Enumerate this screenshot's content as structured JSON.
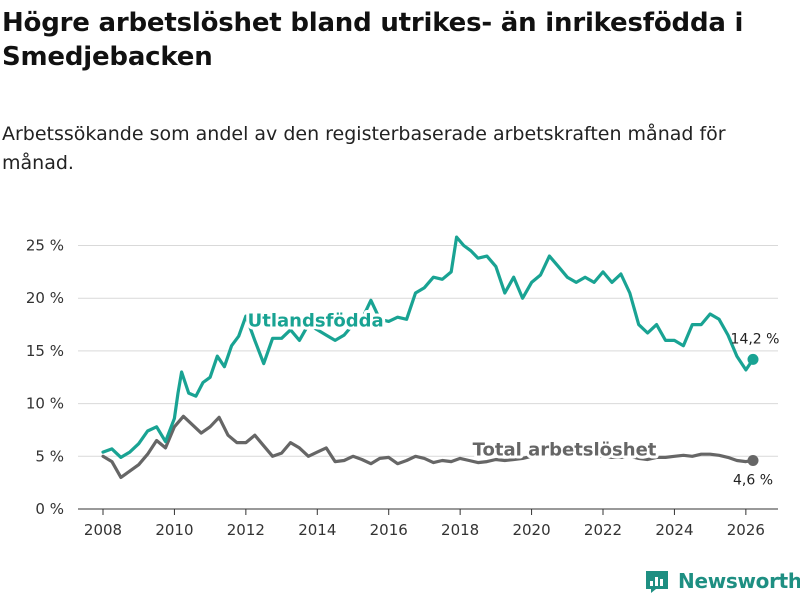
{
  "title": "Högre arbetslöshet bland utrikes- än inrikesfödda i Smedjebacken",
  "subtitle": "Arbetssökande som andel av den registerbaserade arbetskraften månad för månad.",
  "brand": {
    "name": "Newsworthy",
    "color": "#1e8f82"
  },
  "chart_data": {
    "type": "line",
    "title": "Högre arbetslöshet bland utrikes- än inrikesfödda i Smedjebacken",
    "xlabel": "",
    "ylabel": "",
    "xlim": [
      2007.3,
      2026.9
    ],
    "ylim": [
      0,
      26
    ],
    "x_ticks": [
      2008,
      2010,
      2012,
      2014,
      2016,
      2018,
      2020,
      2022,
      2024,
      2026
    ],
    "x_tick_labels": [
      "2008",
      "2010",
      "2012",
      "2014",
      "2016",
      "2018",
      "2020",
      "2022",
      "2024",
      "2026"
    ],
    "y_ticks": [
      0,
      5,
      10,
      15,
      20,
      25
    ],
    "y_tick_labels": [
      "0 %",
      "5 %",
      "10 %",
      "15 %",
      "20 %",
      "25 %"
    ],
    "grid": true,
    "series": [
      {
        "name": "Utlandsfödda",
        "color": "#19a393",
        "end_label": "14,2 %",
        "points": [
          [
            2008.0,
            5.4
          ],
          [
            2008.25,
            5.7
          ],
          [
            2008.5,
            4.9
          ],
          [
            2008.75,
            5.4
          ],
          [
            2009.0,
            6.2
          ],
          [
            2009.25,
            7.4
          ],
          [
            2009.5,
            7.8
          ],
          [
            2009.75,
            6.4
          ],
          [
            2010.0,
            8.6
          ],
          [
            2010.1,
            11.0
          ],
          [
            2010.2,
            13.0
          ],
          [
            2010.4,
            11.0
          ],
          [
            2010.6,
            10.7
          ],
          [
            2010.8,
            12.0
          ],
          [
            2011.0,
            12.5
          ],
          [
            2011.2,
            14.5
          ],
          [
            2011.4,
            13.5
          ],
          [
            2011.6,
            15.5
          ],
          [
            2011.8,
            16.4
          ],
          [
            2012.0,
            18.3
          ],
          [
            2012.25,
            16.0
          ],
          [
            2012.5,
            13.8
          ],
          [
            2012.75,
            16.2
          ],
          [
            2013.0,
            16.2
          ],
          [
            2013.25,
            17.0
          ],
          [
            2013.5,
            16.0
          ],
          [
            2013.75,
            17.5
          ],
          [
            2014.0,
            17.0
          ],
          [
            2014.25,
            16.5
          ],
          [
            2014.5,
            16.0
          ],
          [
            2014.75,
            16.5
          ],
          [
            2015.0,
            17.5
          ],
          [
            2015.25,
            18.0
          ],
          [
            2015.5,
            19.8
          ],
          [
            2015.75,
            18.0
          ],
          [
            2016.0,
            17.8
          ],
          [
            2016.25,
            18.2
          ],
          [
            2016.5,
            18.0
          ],
          [
            2016.75,
            20.5
          ],
          [
            2017.0,
            21.0
          ],
          [
            2017.25,
            22.0
          ],
          [
            2017.5,
            21.8
          ],
          [
            2017.75,
            22.5
          ],
          [
            2017.9,
            25.8
          ],
          [
            2018.1,
            25.0
          ],
          [
            2018.3,
            24.5
          ],
          [
            2018.5,
            23.8
          ],
          [
            2018.75,
            24.0
          ],
          [
            2019.0,
            23.0
          ],
          [
            2019.25,
            20.5
          ],
          [
            2019.5,
            22.0
          ],
          [
            2019.75,
            20.0
          ],
          [
            2020.0,
            21.5
          ],
          [
            2020.25,
            22.2
          ],
          [
            2020.5,
            24.0
          ],
          [
            2020.75,
            23.0
          ],
          [
            2021.0,
            22.0
          ],
          [
            2021.25,
            21.5
          ],
          [
            2021.5,
            22.0
          ],
          [
            2021.75,
            21.5
          ],
          [
            2022.0,
            22.5
          ],
          [
            2022.25,
            21.5
          ],
          [
            2022.5,
            22.3
          ],
          [
            2022.75,
            20.5
          ],
          [
            2023.0,
            17.5
          ],
          [
            2023.25,
            16.7
          ],
          [
            2023.5,
            17.5
          ],
          [
            2023.75,
            16.0
          ],
          [
            2024.0,
            16.0
          ],
          [
            2024.25,
            15.5
          ],
          [
            2024.5,
            17.5
          ],
          [
            2024.75,
            17.5
          ],
          [
            2025.0,
            18.5
          ],
          [
            2025.25,
            18.0
          ],
          [
            2025.5,
            16.5
          ],
          [
            2025.75,
            14.5
          ],
          [
            2026.0,
            13.2
          ],
          [
            2026.2,
            14.2
          ]
        ]
      },
      {
        "name": "Total arbetslöshet",
        "color": "#666666",
        "end_label": "4,6 %",
        "points": [
          [
            2008.0,
            5.0
          ],
          [
            2008.25,
            4.5
          ],
          [
            2008.5,
            3.0
          ],
          [
            2008.75,
            3.6
          ],
          [
            2009.0,
            4.2
          ],
          [
            2009.25,
            5.2
          ],
          [
            2009.5,
            6.5
          ],
          [
            2009.75,
            5.8
          ],
          [
            2010.0,
            7.8
          ],
          [
            2010.25,
            8.8
          ],
          [
            2010.5,
            8.0
          ],
          [
            2010.75,
            7.2
          ],
          [
            2011.0,
            7.8
          ],
          [
            2011.25,
            8.7
          ],
          [
            2011.5,
            7.0
          ],
          [
            2011.75,
            6.3
          ],
          [
            2012.0,
            6.3
          ],
          [
            2012.25,
            7.0
          ],
          [
            2012.5,
            6.0
          ],
          [
            2012.75,
            5.0
          ],
          [
            2013.0,
            5.3
          ],
          [
            2013.25,
            6.3
          ],
          [
            2013.5,
            5.8
          ],
          [
            2013.75,
            5.0
          ],
          [
            2014.0,
            5.4
          ],
          [
            2014.25,
            5.8
          ],
          [
            2014.5,
            4.5
          ],
          [
            2014.75,
            4.6
          ],
          [
            2015.0,
            5.0
          ],
          [
            2015.25,
            4.7
          ],
          [
            2015.5,
            4.3
          ],
          [
            2015.75,
            4.8
          ],
          [
            2016.0,
            4.9
          ],
          [
            2016.25,
            4.3
          ],
          [
            2016.5,
            4.6
          ],
          [
            2016.75,
            5.0
          ],
          [
            2017.0,
            4.8
          ],
          [
            2017.25,
            4.4
          ],
          [
            2017.5,
            4.6
          ],
          [
            2017.75,
            4.5
          ],
          [
            2018.0,
            4.8
          ],
          [
            2018.25,
            4.6
          ],
          [
            2018.5,
            4.4
          ],
          [
            2018.75,
            4.5
          ],
          [
            2019.0,
            4.7
          ],
          [
            2019.25,
            4.6
          ],
          [
            2019.5,
            4.7
          ],
          [
            2019.75,
            4.8
          ],
          [
            2020.0,
            5.0
          ],
          [
            2020.25,
            5.3
          ],
          [
            2020.5,
            5.8
          ],
          [
            2020.75,
            5.6
          ],
          [
            2021.0,
            5.5
          ],
          [
            2021.25,
            5.3
          ],
          [
            2021.5,
            5.2
          ],
          [
            2021.75,
            5.0
          ],
          [
            2022.0,
            5.0
          ],
          [
            2022.25,
            4.9
          ],
          [
            2022.5,
            4.9
          ],
          [
            2022.75,
            5.0
          ],
          [
            2023.0,
            4.8
          ],
          [
            2023.25,
            4.7
          ],
          [
            2023.5,
            4.9
          ],
          [
            2023.75,
            4.9
          ],
          [
            2024.0,
            5.0
          ],
          [
            2024.25,
            5.1
          ],
          [
            2024.5,
            5.0
          ],
          [
            2024.75,
            5.2
          ],
          [
            2025.0,
            5.2
          ],
          [
            2025.25,
            5.1
          ],
          [
            2025.5,
            4.9
          ],
          [
            2025.75,
            4.6
          ],
          [
            2026.0,
            4.5
          ],
          [
            2026.2,
            4.6
          ]
        ]
      }
    ]
  }
}
